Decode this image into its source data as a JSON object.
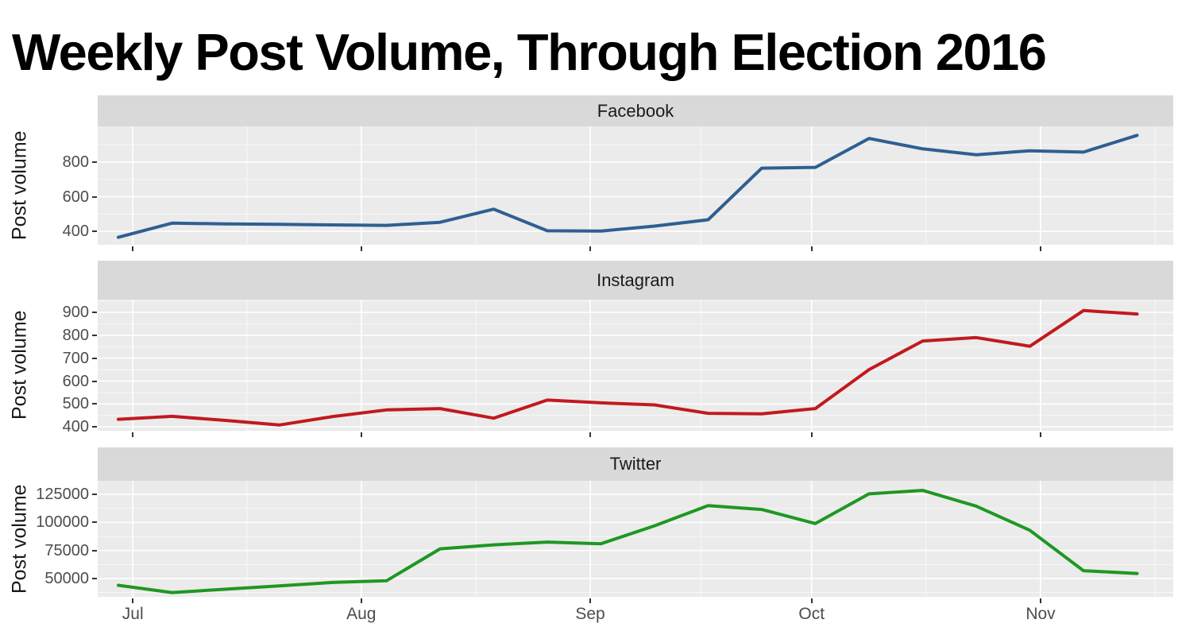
{
  "title": "Weekly Post Volume, Through Election 2016",
  "chart_data": {
    "type": "line",
    "title": "Weekly Post Volume, Through Election 2016",
    "ylabel": "Post volume",
    "x_unit": "week (weekly posts, July through mid-November 2016)",
    "x_tick_labels": [
      "Jul",
      "Aug",
      "Sep",
      "Oct",
      "Nov"
    ],
    "x_tick_week_pos": [
      0.27,
      4.53,
      8.8,
      12.93,
      17.2
    ],
    "grid": "ggplot-grey",
    "legend": "none (facet labels in strips)",
    "facets": [
      {
        "name": "Facebook",
        "color": "#2E5F93",
        "ylim": [
          322,
          1007
        ],
        "y_ticks": [
          400,
          600,
          800
        ],
        "y_minor": [
          300,
          500,
          700,
          900
        ],
        "values": [
          365,
          447,
          443,
          440,
          437,
          434,
          452,
          528,
          403,
          401,
          430,
          467,
          765,
          770,
          937,
          877,
          843,
          866,
          858,
          955
        ]
      },
      {
        "name": "Instagram",
        "color": "#C01A1E",
        "ylim": [
          383,
          956
        ],
        "y_ticks": [
          400,
          500,
          600,
          700,
          800,
          900
        ],
        "y_minor": [
          450,
          550,
          650,
          750,
          850,
          950
        ],
        "values": [
          433,
          446,
          428,
          408,
          445,
          474,
          480,
          438,
          517,
          505,
          496,
          459,
          457,
          480,
          650,
          775,
          790,
          752,
          908,
          893
        ]
      },
      {
        "name": "Twitter",
        "color": "#1F9722",
        "ylim": [
          33700,
          137100
        ],
        "y_ticks": [
          50000,
          75000,
          100000,
          125000
        ],
        "y_minor": [
          37500,
          62500,
          87500,
          112500
        ],
        "values": [
          44000,
          37500,
          40500,
          43500,
          46500,
          48000,
          76500,
          80000,
          82500,
          81000,
          97000,
          115000,
          111500,
          99000,
          125500,
          128500,
          114500,
          93000,
          57000,
          54500
        ]
      }
    ],
    "panel_background": "#EBEBEB",
    "strip_background": "#D9D9D9",
    "gridline_color": "#FFFFFF",
    "axis_text_color": "#4d4d4d"
  }
}
